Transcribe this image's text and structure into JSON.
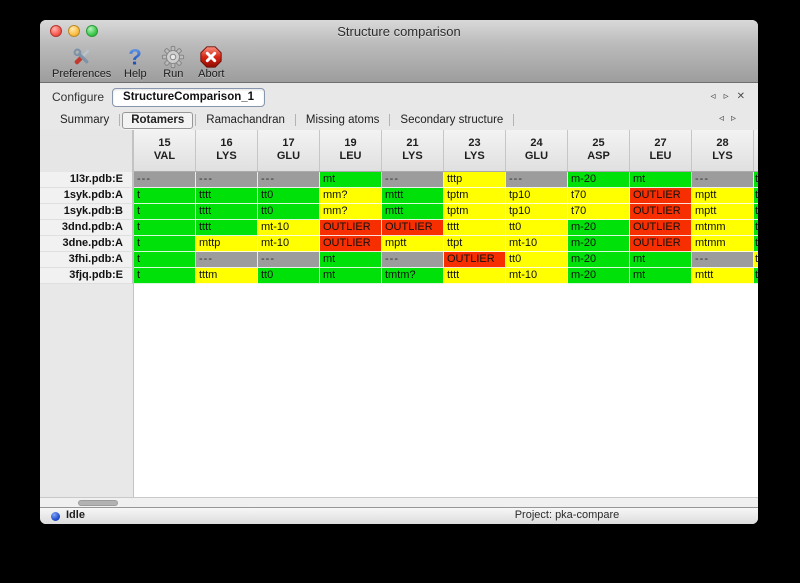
{
  "window": {
    "title": "Structure comparison"
  },
  "toolbar": {
    "items": [
      {
        "label": "Preferences",
        "icon": "tools-icon"
      },
      {
        "label": "Help",
        "icon": "question-icon"
      },
      {
        "label": "Run",
        "icon": "gear-icon"
      },
      {
        "label": "Abort",
        "icon": "stop-icon"
      }
    ]
  },
  "configure": {
    "label": "Configure",
    "value": "StructureComparison_1",
    "nav": {
      "prev": "◃",
      "next": "▹",
      "close": "✕"
    }
  },
  "tabs": {
    "items": [
      {
        "label": "Summary",
        "selected": false
      },
      {
        "label": "Rotamers",
        "selected": true
      },
      {
        "label": "Ramachandran",
        "selected": false
      },
      {
        "label": "Missing atoms",
        "selected": false
      },
      {
        "label": "Secondary structure",
        "selected": false
      }
    ],
    "nav": {
      "prev": "◃",
      "next": "▹"
    }
  },
  "colors": {
    "green": "#00e10a",
    "yellow": "#ffff00",
    "red": "#f62e00",
    "gray": "#9c9c9c"
  },
  "table": {
    "columns": [
      {
        "num": "15",
        "res": "VAL"
      },
      {
        "num": "16",
        "res": "LYS"
      },
      {
        "num": "17",
        "res": "GLU"
      },
      {
        "num": "19",
        "res": "LEU"
      },
      {
        "num": "21",
        "res": "LYS"
      },
      {
        "num": "23",
        "res": "LYS"
      },
      {
        "num": "24",
        "res": "GLU"
      },
      {
        "num": "25",
        "res": "ASP"
      },
      {
        "num": "27",
        "res": "LEU"
      },
      {
        "num": "28",
        "res": "LYS"
      }
    ],
    "rows": [
      {
        "label": "1l3r.pdb:E",
        "partial": "green",
        "cells": [
          {
            "t": "---",
            "c": "gray"
          },
          {
            "t": "---",
            "c": "gray"
          },
          {
            "t": "---",
            "c": "gray"
          },
          {
            "t": "mt",
            "c": "green"
          },
          {
            "t": "---",
            "c": "gray"
          },
          {
            "t": "tttp",
            "c": "yellow"
          },
          {
            "t": "---",
            "c": "gray"
          },
          {
            "t": "m-20",
            "c": "green"
          },
          {
            "t": "mt",
            "c": "green"
          },
          {
            "t": "---",
            "c": "gray"
          }
        ]
      },
      {
        "label": "1syk.pdb:A",
        "partial": "green",
        "cells": [
          {
            "t": "t",
            "c": "green",
            "clip": true
          },
          {
            "t": "tttt",
            "c": "green"
          },
          {
            "t": "tt0",
            "c": "green"
          },
          {
            "t": "mm?",
            "c": "yellow"
          },
          {
            "t": "mttt",
            "c": "green"
          },
          {
            "t": "tptm",
            "c": "yellow"
          },
          {
            "t": "tp10",
            "c": "yellow"
          },
          {
            "t": "t70",
            "c": "yellow"
          },
          {
            "t": "OUTLIER",
            "c": "red"
          },
          {
            "t": "mptt",
            "c": "yellow"
          }
        ]
      },
      {
        "label": "1syk.pdb:B",
        "partial": "green",
        "cells": [
          {
            "t": "t",
            "c": "green",
            "clip": true
          },
          {
            "t": "tttt",
            "c": "green"
          },
          {
            "t": "tt0",
            "c": "green"
          },
          {
            "t": "mm?",
            "c": "yellow"
          },
          {
            "t": "mttt",
            "c": "green"
          },
          {
            "t": "tptm",
            "c": "yellow"
          },
          {
            "t": "tp10",
            "c": "yellow"
          },
          {
            "t": "t70",
            "c": "yellow"
          },
          {
            "t": "OUTLIER",
            "c": "red"
          },
          {
            "t": "mptt",
            "c": "yellow"
          }
        ]
      },
      {
        "label": "3dnd.pdb:A",
        "partial": "green",
        "cells": [
          {
            "t": "t",
            "c": "green",
            "clip": true
          },
          {
            "t": "tttt",
            "c": "green"
          },
          {
            "t": "mt-10",
            "c": "yellow"
          },
          {
            "t": "OUTLIER",
            "c": "red"
          },
          {
            "t": "OUTLIER",
            "c": "red"
          },
          {
            "t": "tttt",
            "c": "yellow"
          },
          {
            "t": "tt0",
            "c": "yellow"
          },
          {
            "t": "m-20",
            "c": "green"
          },
          {
            "t": "OUTLIER",
            "c": "red"
          },
          {
            "t": "mtmm",
            "c": "yellow"
          }
        ]
      },
      {
        "label": "3dne.pdb:A",
        "partial": "green",
        "cells": [
          {
            "t": "t",
            "c": "green",
            "clip": true
          },
          {
            "t": "mttp",
            "c": "yellow"
          },
          {
            "t": "mt-10",
            "c": "yellow"
          },
          {
            "t": "OUTLIER",
            "c": "red"
          },
          {
            "t": "mptt",
            "c": "yellow"
          },
          {
            "t": "ttpt",
            "c": "yellow"
          },
          {
            "t": "mt-10",
            "c": "yellow"
          },
          {
            "t": "m-20",
            "c": "green"
          },
          {
            "t": "OUTLIER",
            "c": "red"
          },
          {
            "t": "mtmm",
            "c": "yellow"
          }
        ]
      },
      {
        "label": "3fhi.pdb:A",
        "partial": "yellow",
        "cells": [
          {
            "t": "t",
            "c": "green",
            "clip": true
          },
          {
            "t": "---",
            "c": "gray"
          },
          {
            "t": "---",
            "c": "gray"
          },
          {
            "t": "mt",
            "c": "green"
          },
          {
            "t": "---",
            "c": "gray"
          },
          {
            "t": "OUTLIER",
            "c": "red"
          },
          {
            "t": "tt0",
            "c": "yellow"
          },
          {
            "t": "m-20",
            "c": "green"
          },
          {
            "t": "mt",
            "c": "green"
          },
          {
            "t": "---",
            "c": "gray"
          }
        ]
      },
      {
        "label": "3fjq.pdb:E",
        "partial": "green",
        "cells": [
          {
            "t": "t",
            "c": "green",
            "clip": true
          },
          {
            "t": "tttm",
            "c": "yellow"
          },
          {
            "t": "tt0",
            "c": "green"
          },
          {
            "t": "mt",
            "c": "green"
          },
          {
            "t": "tmtm?",
            "c": "green"
          },
          {
            "t": "tttt",
            "c": "yellow"
          },
          {
            "t": "mt-10",
            "c": "yellow"
          },
          {
            "t": "m-20",
            "c": "green"
          },
          {
            "t": "mt",
            "c": "green"
          },
          {
            "t": "mttt",
            "c": "yellow"
          }
        ]
      }
    ]
  },
  "statusbar": {
    "state": "Idle",
    "project": "Project: pka-compare"
  }
}
